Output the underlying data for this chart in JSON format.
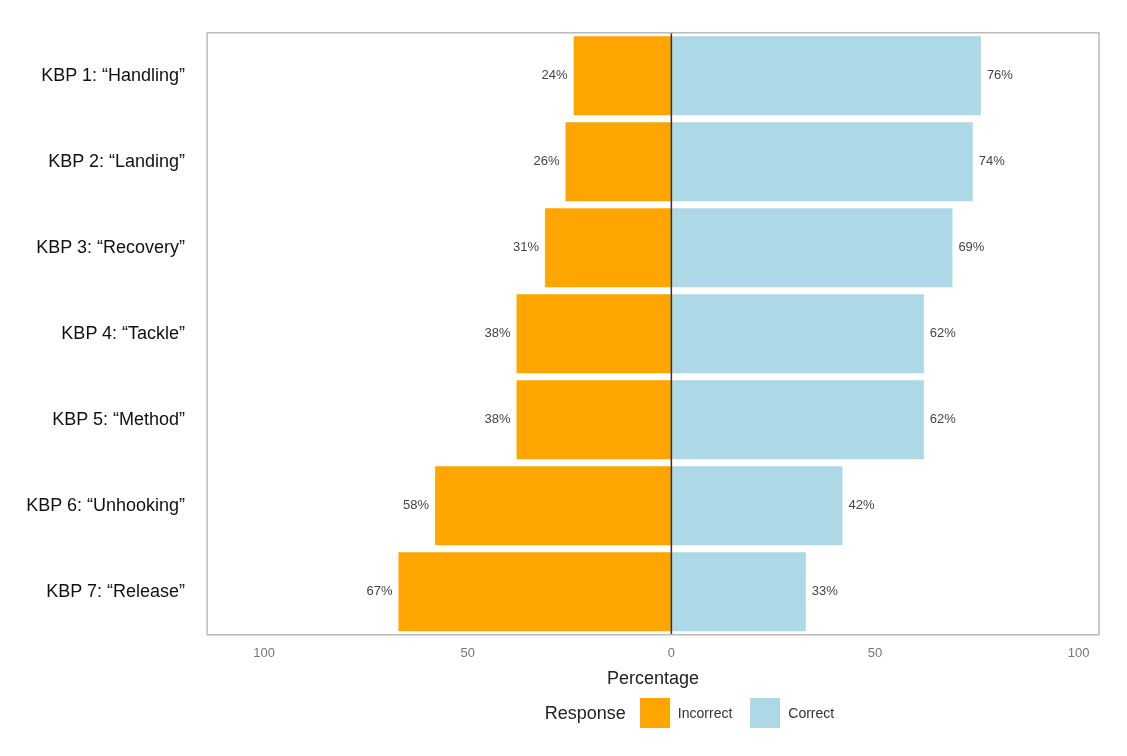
{
  "chart_data": {
    "type": "bar",
    "orientation": "horizontal",
    "xlabel": "Percentage",
    "legend_title": "Response",
    "legend": "bottom",
    "grid": false,
    "categories": [
      "KBP 1: “Handling”",
      "KBP 2: “Landing”",
      "KBP 3: “Recovery”",
      "KBP 4: “Tackle”",
      "KBP 5: “Method”",
      "KBP 6: “Unhooking”",
      "KBP 7: “Release”"
    ],
    "series": [
      {
        "name": "Incorrect",
        "color": "#ffa500",
        "values": [
          24,
          26,
          31,
          38,
          38,
          58,
          67
        ],
        "base": [
          -24,
          -26,
          -31,
          -38,
          -38,
          -58,
          -67
        ],
        "value_labels": [
          "24%",
          "26%",
          "31%",
          "38%",
          "38%",
          "58%",
          "67%"
        ]
      },
      {
        "name": "Correct",
        "color": "#add8e6",
        "values": [
          76,
          74,
          69,
          62,
          62,
          42,
          33
        ],
        "value_labels": [
          "76%",
          "74%",
          "69%",
          "62%",
          "62%",
          "42%",
          "33%"
        ]
      }
    ],
    "xlim": [
      -114,
      105
    ],
    "xticks": [
      {
        "value": -100,
        "label": "100"
      },
      {
        "value": -50,
        "label": "50"
      },
      0,
      50,
      100
    ],
    "ref_lines": [
      {
        "axis": "x",
        "value": 0,
        "color": "#333333"
      }
    ]
  }
}
